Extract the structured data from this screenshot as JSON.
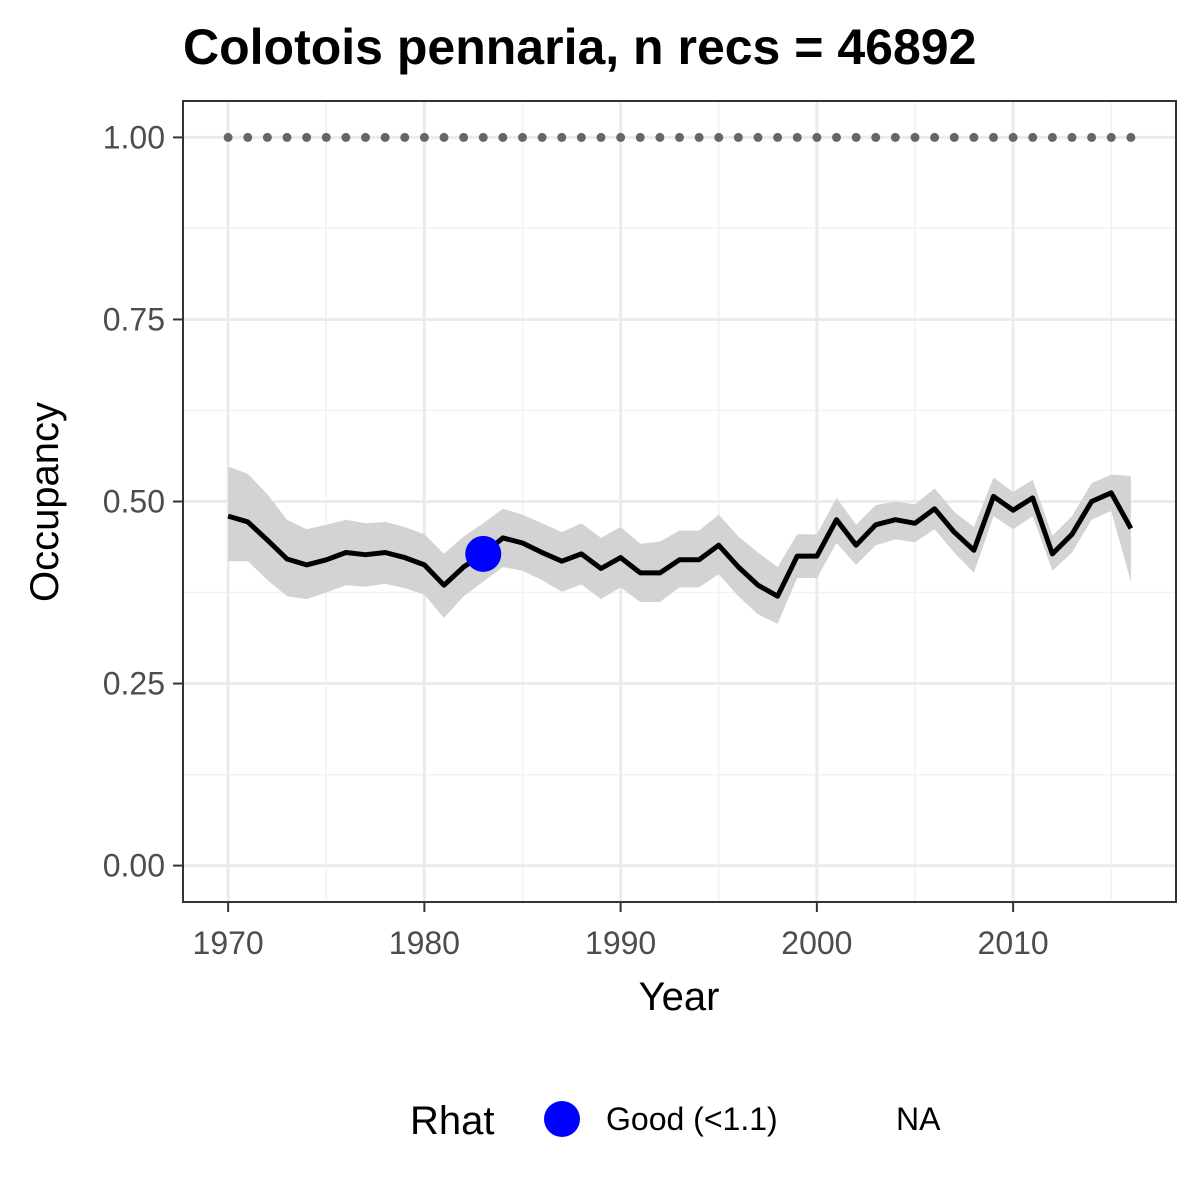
{
  "chart_data": {
    "type": "line",
    "title": "Colotois pennaria, n recs = 46892",
    "xlabel": "Year",
    "ylabel": "Occupancy",
    "xlim": [
      1967.7,
      2018.3
    ],
    "ylim": [
      -0.05,
      1.05
    ],
    "x_ticks": [
      1970,
      1980,
      1990,
      2000,
      2010
    ],
    "x_tick_labels": [
      "1970",
      "1980",
      "1990",
      "2000",
      "2010"
    ],
    "y_ticks": [
      0,
      0.25,
      0.5,
      0.75,
      1.0
    ],
    "y_tick_labels": [
      "0.00",
      "0.25",
      "0.50",
      "0.75",
      "1.00"
    ],
    "grid": true,
    "x": [
      1970,
      1971,
      1972,
      1973,
      1974,
      1975,
      1976,
      1977,
      1978,
      1979,
      1980,
      1981,
      1982,
      1983,
      1984,
      1985,
      1986,
      1987,
      1988,
      1989,
      1990,
      1991,
      1992,
      1993,
      1994,
      1995,
      1996,
      1997,
      1998,
      1999,
      2000,
      2001,
      2002,
      2003,
      2004,
      2005,
      2006,
      2007,
      2008,
      2009,
      2010,
      2011,
      2012,
      2013,
      2014,
      2015,
      2016
    ],
    "series": [
      {
        "values": [
          0.48,
          0.472,
          0.447,
          0.421,
          0.413,
          0.42,
          0.43,
          0.427,
          0.43,
          0.423,
          0.413,
          0.385,
          0.41,
          0.428,
          0.45,
          0.443,
          0.43,
          0.418,
          0.428,
          0.408,
          0.423,
          0.402,
          0.402,
          0.42,
          0.42,
          0.44,
          0.41,
          0.385,
          0.37,
          0.425,
          0.425,
          0.475,
          0.44,
          0.468,
          0.475,
          0.47,
          0.49,
          0.458,
          0.433,
          0.507,
          0.488,
          0.505,
          0.428,
          0.455,
          0.5,
          0.512,
          0.463
        ],
        "lower": [
          0.418,
          0.418,
          0.392,
          0.37,
          0.366,
          0.375,
          0.385,
          0.383,
          0.387,
          0.381,
          0.372,
          0.34,
          0.37,
          0.39,
          0.41,
          0.405,
          0.392,
          0.376,
          0.386,
          0.366,
          0.382,
          0.362,
          0.362,
          0.382,
          0.382,
          0.4,
          0.37,
          0.345,
          0.332,
          0.395,
          0.395,
          0.443,
          0.413,
          0.44,
          0.448,
          0.444,
          0.462,
          0.43,
          0.402,
          0.48,
          0.462,
          0.48,
          0.405,
          0.43,
          0.475,
          0.487,
          0.39
        ],
        "upper": [
          0.548,
          0.538,
          0.51,
          0.475,
          0.462,
          0.468,
          0.475,
          0.47,
          0.472,
          0.465,
          0.455,
          0.428,
          0.452,
          0.47,
          0.49,
          0.482,
          0.47,
          0.458,
          0.47,
          0.45,
          0.465,
          0.442,
          0.445,
          0.46,
          0.46,
          0.482,
          0.452,
          0.43,
          0.41,
          0.455,
          0.455,
          0.505,
          0.468,
          0.495,
          0.5,
          0.496,
          0.518,
          0.486,
          0.465,
          0.533,
          0.513,
          0.53,
          0.453,
          0.48,
          0.525,
          0.537,
          0.535
        ],
        "color": "#000000",
        "ribbon_color": "#d3d3d3"
      },
      {
        "values": [
          1.0,
          1.0,
          1.0,
          1.0,
          1.0,
          1.0,
          1.0,
          1.0,
          1.0,
          1.0,
          1.0,
          1.0,
          1.0,
          1.0,
          1.0,
          1.0,
          1.0,
          1.0,
          1.0,
          1.0,
          1.0,
          1.0,
          1.0,
          1.0,
          1.0,
          1.0,
          1.0,
          1.0,
          1.0,
          1.0,
          1.0,
          1.0,
          1.0,
          1.0,
          1.0,
          1.0,
          1.0,
          1.0,
          1.0,
          1.0,
          1.0,
          1.0,
          1.0,
          1.0,
          1.0,
          1.0,
          1.0
        ],
        "style": "dotted",
        "color": "#666666"
      }
    ],
    "rhat_points": [
      {
        "x": 1983,
        "y": 0.428,
        "category": "Good (<1.1)",
        "color": "#0000ff"
      }
    ],
    "legend": {
      "position": "bottom",
      "title": "Rhat",
      "entries": [
        {
          "label": "Good (<1.1)",
          "color": "#0000ff",
          "shape": "circle"
        },
        {
          "label": "NA",
          "color": null,
          "shape": "none"
        }
      ]
    }
  }
}
